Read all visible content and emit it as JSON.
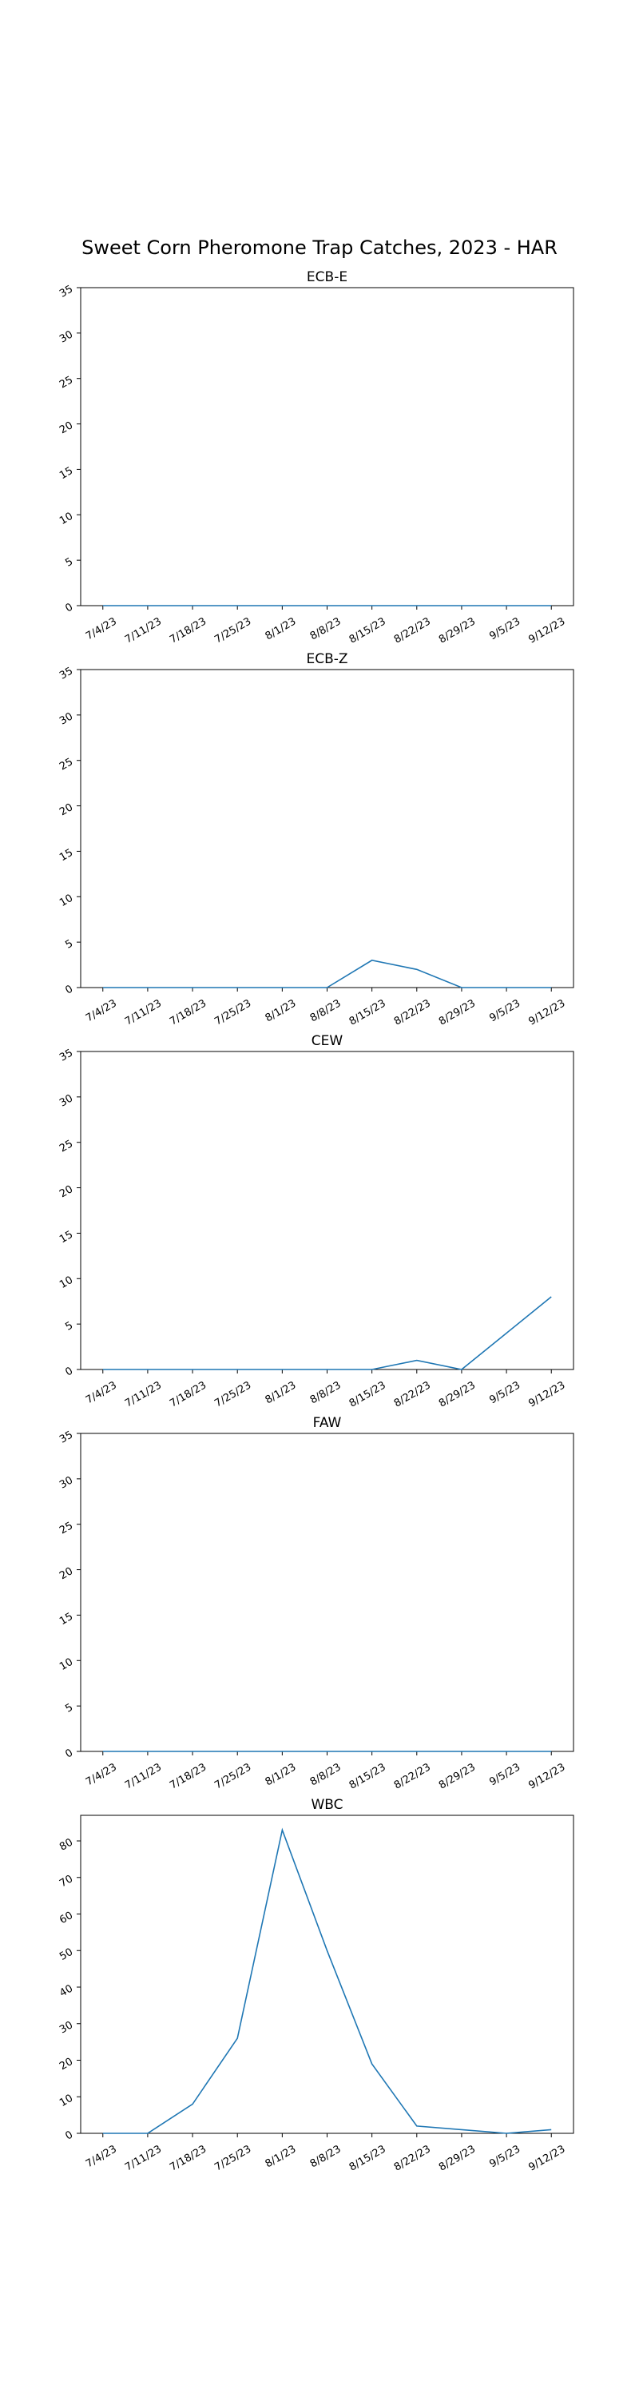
{
  "figure": {
    "title": "Sweet Corn Pheromone Trap Catches, 2023 - HAR"
  },
  "chart_data": [
    {
      "type": "line",
      "title": "ECB-E",
      "categories": [
        "7/4/23",
        "7/11/23",
        "7/18/23",
        "7/25/23",
        "8/1/23",
        "8/8/23",
        "8/15/23",
        "8/22/23",
        "8/29/23",
        "9/5/23",
        "9/12/23"
      ],
      "values": [
        0,
        0,
        0,
        0,
        0,
        0,
        0,
        0,
        0,
        0,
        0
      ],
      "ylim": [
        0,
        35
      ],
      "yticks": [
        0,
        5,
        10,
        15,
        20,
        25,
        30,
        35
      ],
      "grid": false,
      "color": "#1f77b4"
    },
    {
      "type": "line",
      "title": "ECB-Z",
      "categories": [
        "7/4/23",
        "7/11/23",
        "7/18/23",
        "7/25/23",
        "8/1/23",
        "8/8/23",
        "8/15/23",
        "8/22/23",
        "8/29/23",
        "9/5/23",
        "9/12/23"
      ],
      "values": [
        0,
        0,
        0,
        0,
        0,
        0,
        3,
        2,
        0,
        0,
        0
      ],
      "ylim": [
        0,
        35
      ],
      "yticks": [
        0,
        5,
        10,
        15,
        20,
        25,
        30,
        35
      ],
      "grid": false,
      "color": "#1f77b4"
    },
    {
      "type": "line",
      "title": "CEW",
      "categories": [
        "7/4/23",
        "7/11/23",
        "7/18/23",
        "7/25/23",
        "8/1/23",
        "8/8/23",
        "8/15/23",
        "8/22/23",
        "8/29/23",
        "9/5/23",
        "9/12/23"
      ],
      "values": [
        0,
        0,
        0,
        0,
        0,
        0,
        0,
        1,
        0,
        4,
        8
      ],
      "ylim": [
        0,
        35
      ],
      "yticks": [
        0,
        5,
        10,
        15,
        20,
        25,
        30,
        35
      ],
      "grid": false,
      "color": "#1f77b4"
    },
    {
      "type": "line",
      "title": "FAW",
      "categories": [
        "7/4/23",
        "7/11/23",
        "7/18/23",
        "7/25/23",
        "8/1/23",
        "8/8/23",
        "8/15/23",
        "8/22/23",
        "8/29/23",
        "9/5/23",
        "9/12/23"
      ],
      "values": [
        0,
        0,
        0,
        0,
        0,
        0,
        0,
        0,
        0,
        0,
        0
      ],
      "ylim": [
        0,
        35
      ],
      "yticks": [
        0,
        5,
        10,
        15,
        20,
        25,
        30,
        35
      ],
      "grid": false,
      "color": "#1f77b4"
    },
    {
      "type": "line",
      "title": "WBC",
      "categories": [
        "7/4/23",
        "7/11/23",
        "7/18/23",
        "7/25/23",
        "8/1/23",
        "8/8/23",
        "8/15/23",
        "8/22/23",
        "8/29/23",
        "9/5/23",
        "9/12/23"
      ],
      "values": [
        0,
        0,
        8,
        26,
        83,
        50,
        19,
        2,
        1,
        0,
        1
      ],
      "ylim": [
        0,
        87
      ],
      "yticks": [
        0,
        10,
        20,
        30,
        40,
        50,
        60,
        70,
        80
      ],
      "grid": false,
      "color": "#1f77b4"
    }
  ]
}
